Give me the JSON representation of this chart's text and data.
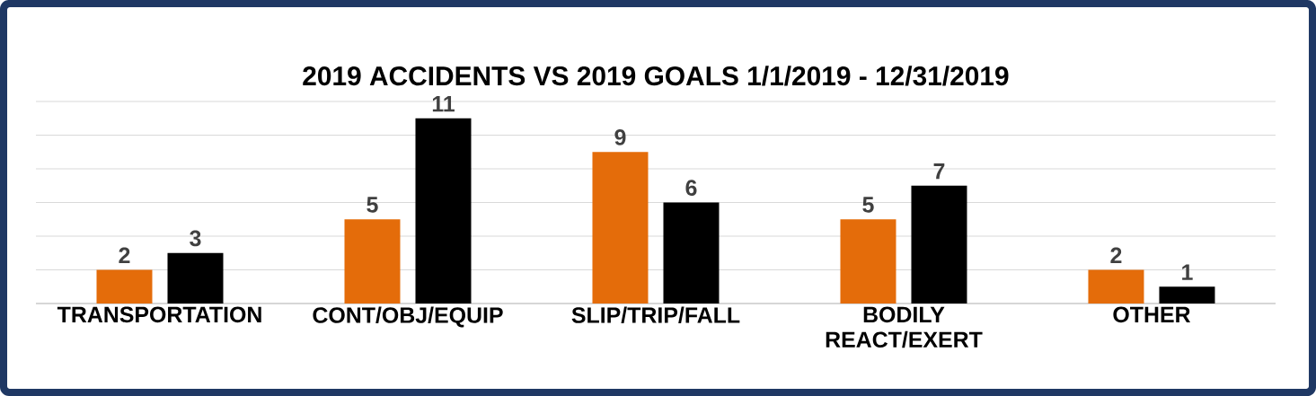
{
  "chart_data": {
    "type": "bar",
    "title": "2019 ACCIDENTS VS 2019 GOALS 1/1/2019 - 12/31/2019",
    "categories": [
      "TRANSPORTATION",
      "CONT/OBJ/EQUIP",
      "SLIP/TRIP/FALL",
      "BODILY REACT/EXERT",
      "OTHER"
    ],
    "series": [
      {
        "color": "#e46c0a",
        "values": [
          2,
          5,
          9,
          5,
          2
        ]
      },
      {
        "color": "#000000",
        "values": [
          3,
          11,
          6,
          7,
          1
        ]
      }
    ],
    "ylim": [
      0,
      12
    ],
    "tick_labels": "x",
    "grid": "y",
    "data_labels": true
  }
}
